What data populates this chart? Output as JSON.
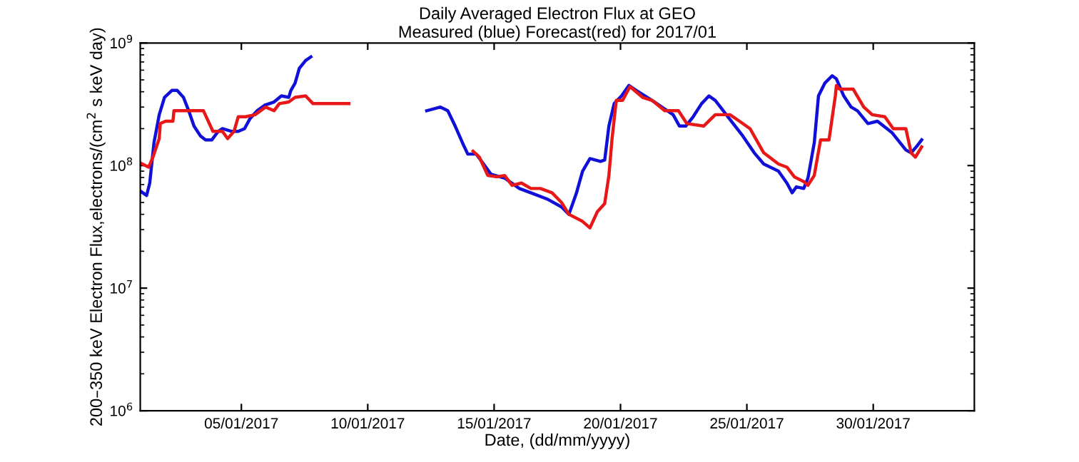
{
  "chart_data": {
    "type": "line",
    "title": "Daily Averaged Electron Flux at GEO",
    "subtitle": "Measured (blue) Forecast(red) for 2017/01",
    "xlabel": "Date, (dd/mm/yyyy)",
    "ylabel": "200–350 keV Electron Flux,electrons/(cm$^{2}$ s keV day)",
    "log": "y",
    "xlim": [
      "2017-01-01",
      "2017-02-03"
    ],
    "ylim": [
      1000000,
      1000000000
    ],
    "xticks": [
      {
        "value": "2017-01-05",
        "label": "05/01/2017"
      },
      {
        "value": "2017-01-10",
        "label": "10/01/2017"
      },
      {
        "value": "2017-01-15",
        "label": "15/01/2017"
      },
      {
        "value": "2017-01-20",
        "label": "20/01/2017"
      },
      {
        "value": "2017-01-25",
        "label": "25/01/2017"
      },
      {
        "value": "2017-01-30",
        "label": "30/01/2017"
      }
    ],
    "yticks": [
      {
        "value": 1000000,
        "label": "10$^{6}$"
      },
      {
        "value": 10000000,
        "label": "10$^{7}$"
      },
      {
        "value": 100000000,
        "label": "10$^{8}$"
      },
      {
        "value": 1000000000,
        "label": "10$^{9}$"
      }
    ],
    "grid": false,
    "legend": false,
    "series": [
      {
        "color": "#1010d8",
        "x": [
          "2017-01-01T00:00",
          "2017-01-01T06:00",
          "2017-01-01T09:00",
          "2017-01-01T13:00",
          "2017-01-01T18:00",
          "2017-01-01T23:00",
          "2017-01-02T06:00",
          "2017-01-02T11:00",
          "2017-01-02T17:00",
          "2017-01-02T22:00",
          "2017-01-03T03:00",
          "2017-01-03T09:00",
          "2017-01-03T14:00",
          "2017-01-03T20:00",
          "2017-01-04T02:00",
          "2017-01-04T06:00",
          "2017-01-04T15:00",
          "2017-01-04T21:00",
          "2017-01-05T03:00",
          "2017-01-05T08:00",
          "2017-01-05T15:00",
          "2017-01-05T22:00",
          "2017-01-06T07:00",
          "2017-01-06T14:00",
          "2017-01-06T21:00",
          "2017-01-06T23:00",
          "2017-01-07T03:00",
          "2017-01-07T07:00",
          "2017-01-07T13:00",
          "2017-01-07T18:00",
          "2017-01-10T00:00",
          "2017-01-12T08:00",
          "2017-01-12T21:00",
          "2017-01-13T04:00",
          "2017-01-13T11:00",
          "2017-01-13T18:00",
          "2017-01-13T23:00",
          "2017-01-14T07:00",
          "2017-01-14T14:00",
          "2017-01-14T21:00",
          "2017-01-15T10:00",
          "2017-01-16T00:00",
          "2017-01-16T13:00",
          "2017-01-17T03:00",
          "2017-01-17T16:00",
          "2017-01-17T23:00",
          "2017-01-18T06:00",
          "2017-01-18T12:00",
          "2017-01-18T19:00",
          "2017-01-19T05:00",
          "2017-01-19T09:00",
          "2017-01-19T13:00",
          "2017-01-19T18:00",
          "2017-01-20T01:00",
          "2017-01-20T08:00",
          "2017-01-20T15:00",
          "2017-01-21T06:00",
          "2017-01-22T02:00",
          "2017-01-22T08:00",
          "2017-01-22T14:00",
          "2017-01-22T21:00",
          "2017-01-23T05:00",
          "2017-01-23T12:00",
          "2017-01-23T18:00",
          "2017-01-24T06:00",
          "2017-01-24T20:00",
          "2017-01-25T07:00",
          "2017-01-25T16:00",
          "2017-01-26T06:00",
          "2017-01-26T14:00",
          "2017-01-26T19:00",
          "2017-01-26T23:00",
          "2017-01-27T06:00",
          "2017-01-27T10:00",
          "2017-01-27T16:00",
          "2017-01-27T20:00",
          "2017-01-28T02:00",
          "2017-01-28T09:00",
          "2017-01-28T13:00",
          "2017-01-28T20:00",
          "2017-01-29T03:00",
          "2017-01-29T09:00",
          "2017-01-29T19:00",
          "2017-01-30T04:00",
          "2017-01-30T18:00",
          "2017-01-31T07:00",
          "2017-01-31T12:00",
          "2017-01-31T18:00",
          "2017-01-31T22:00"
        ],
        "values": [
          62000000,
          57000000,
          72000000,
          153000000,
          260000000,
          360000000,
          410000000,
          410000000,
          360000000,
          280000000,
          210000000,
          175000000,
          162000000,
          162000000,
          190000000,
          200000000,
          190000000,
          190000000,
          200000000,
          240000000,
          280000000,
          310000000,
          330000000,
          370000000,
          360000000,
          410000000,
          470000000,
          620000000,
          720000000,
          770000000,
          null,
          280000000,
          300000000,
          280000000,
          210000000,
          153000000,
          124000000,
          124000000,
          103000000,
          85000000,
          79000000,
          65000000,
          59000000,
          53000000,
          46000000,
          40000000,
          59000000,
          90000000,
          114000000,
          108000000,
          111000000,
          210000000,
          320000000,
          370000000,
          450000000,
          410000000,
          340000000,
          260000000,
          210000000,
          210000000,
          250000000,
          320000000,
          370000000,
          340000000,
          250000000,
          175000000,
          127000000,
          103000000,
          90000000,
          72000000,
          60000000,
          67000000,
          65000000,
          79000000,
          153000000,
          370000000,
          470000000,
          540000000,
          510000000,
          370000000,
          300000000,
          280000000,
          220000000,
          230000000,
          185000000,
          134000000,
          127000000,
          146000000,
          162000000
        ]
      },
      {
        "color": "#e81818",
        "x": [
          "2017-01-01T00:00",
          "2017-01-01T08:00",
          "2017-01-01T12:00",
          "2017-01-01T18:00",
          "2017-01-01T19:00",
          "2017-01-02T00:00",
          "2017-01-02T07:00",
          "2017-01-02T08:00",
          "2017-01-02T15:00",
          "2017-01-03T01:00",
          "2017-01-03T07:00",
          "2017-01-03T12:00",
          "2017-01-03T21:00",
          "2017-01-04T06:00",
          "2017-01-04T11:00",
          "2017-01-04T17:00",
          "2017-01-04T21:00",
          "2017-01-05T04:00",
          "2017-01-05T13:00",
          "2017-01-05T23:00",
          "2017-01-06T07:00",
          "2017-01-06T12:00",
          "2017-01-06T21:00",
          "2017-01-07T03:00",
          "2017-01-07T13:00",
          "2017-01-07T20:00",
          "2017-01-08T05:00",
          "2017-01-08T13:00",
          "2017-01-08T20:00",
          "2017-01-09T06:00",
          "2017-01-12T00:00",
          "2017-01-14T04:00",
          "2017-01-14T10:00",
          "2017-01-14T18:00",
          "2017-01-15T03:00",
          "2017-01-15T10:00",
          "2017-01-15T17:00",
          "2017-01-16T02:00",
          "2017-01-16T11:00",
          "2017-01-16T20:00",
          "2017-01-17T07:00",
          "2017-01-17T16:00",
          "2017-01-17T23:00",
          "2017-01-18T12:00",
          "2017-01-18T19:00",
          "2017-01-19T02:00",
          "2017-01-19T09:00",
          "2017-01-19T13:00",
          "2017-01-19T16:00",
          "2017-01-19T20:00",
          "2017-01-20T02:00",
          "2017-01-20T09:00",
          "2017-01-20T21:00",
          "2017-01-21T06:00",
          "2017-01-21T18:00",
          "2017-01-22T07:00",
          "2017-01-22T15:00",
          "2017-01-23T07:00",
          "2017-01-23T18:00",
          "2017-01-24T08:00",
          "2017-01-24T17:00",
          "2017-01-25T03:00",
          "2017-01-25T16:00",
          "2017-01-26T06:00",
          "2017-01-26T14:00",
          "2017-01-26T21:00",
          "2017-01-27T06:00",
          "2017-01-27T10:00",
          "2017-01-27T16:00",
          "2017-01-27T22:00",
          "2017-01-28T06:00",
          "2017-01-28T12:00",
          "2017-01-28T13:00",
          "2017-01-28T16:00",
          "2017-01-29T05:00",
          "2017-01-29T15:00",
          "2017-01-29T23:00",
          "2017-01-30T11:00",
          "2017-01-30T19:00",
          "2017-01-31T07:00",
          "2017-01-31T12:00",
          "2017-01-31T16:00",
          "2017-01-31T22:00"
        ],
        "values": [
          105000000,
          97000000,
          117000000,
          166000000,
          220000000,
          230000000,
          230000000,
          280000000,
          280000000,
          280000000,
          280000000,
          280000000,
          190000000,
          190000000,
          166000000,
          190000000,
          250000000,
          250000000,
          260000000,
          300000000,
          280000000,
          320000000,
          330000000,
          360000000,
          370000000,
          320000000,
          320000000,
          320000000,
          320000000,
          320000000,
          null,
          131000000,
          117000000,
          83000000,
          81000000,
          83000000,
          69000000,
          72000000,
          65000000,
          65000000,
          60000000,
          50000000,
          40000000,
          35000000,
          31000000,
          42000000,
          49000000,
          83000000,
          166000000,
          340000000,
          340000000,
          440000000,
          360000000,
          340000000,
          280000000,
          280000000,
          220000000,
          210000000,
          260000000,
          260000000,
          230000000,
          200000000,
          127000000,
          103000000,
          97000000,
          81000000,
          74000000,
          69000000,
          83000000,
          162000000,
          162000000,
          370000000,
          450000000,
          420000000,
          420000000,
          300000000,
          260000000,
          250000000,
          200000000,
          200000000,
          127000000,
          117000000,
          142000000
        ]
      }
    ]
  }
}
